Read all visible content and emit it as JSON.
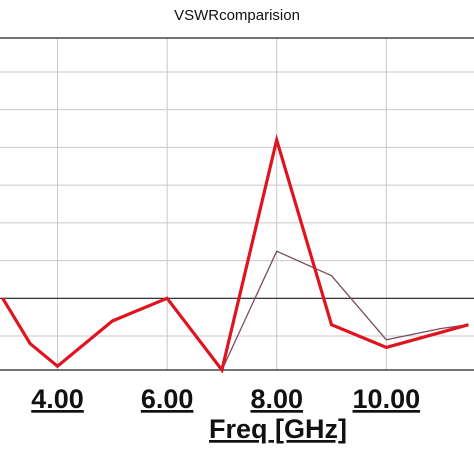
{
  "chart_data": {
    "type": "line",
    "title": "VSWRcomparision",
    "xlabel": "Freq [GHz]",
    "ylabel": "",
    "xlim": [
      2.95,
      11.6
    ],
    "ylim": [
      0.1,
      8.9
    ],
    "x_ticks": [
      4.0,
      6.0,
      8.0,
      10.0
    ],
    "x_tick_labels": [
      "4.00",
      "6.00",
      "8.00",
      "10.00"
    ],
    "y_gridlines": [
      1,
      2,
      3,
      4,
      5,
      6,
      7,
      8
    ],
    "grid": true,
    "reference_line": {
      "y": 2
    },
    "colors": {
      "series_1": "#e0141e",
      "series_2": "#7a4a63",
      "reference": "#222222",
      "grid": "#c8c8c8"
    },
    "series": [
      {
        "name": "",
        "x": [
          3.0,
          3.5,
          4.0,
          5.0,
          6.0,
          7.0,
          8.0,
          9.0,
          10.0,
          11.0,
          11.5
        ],
        "y": [
          2.0,
          0.8,
          0.2,
          1.4,
          2.0,
          0.1,
          6.2,
          1.3,
          0.7,
          1.1,
          1.3
        ]
      },
      {
        "name": "",
        "x": [
          7.0,
          8.0,
          9.0,
          10.0,
          11.0,
          11.5
        ],
        "y": [
          0.1,
          3.25,
          2.6,
          0.9,
          1.2,
          1.3
        ]
      }
    ]
  }
}
